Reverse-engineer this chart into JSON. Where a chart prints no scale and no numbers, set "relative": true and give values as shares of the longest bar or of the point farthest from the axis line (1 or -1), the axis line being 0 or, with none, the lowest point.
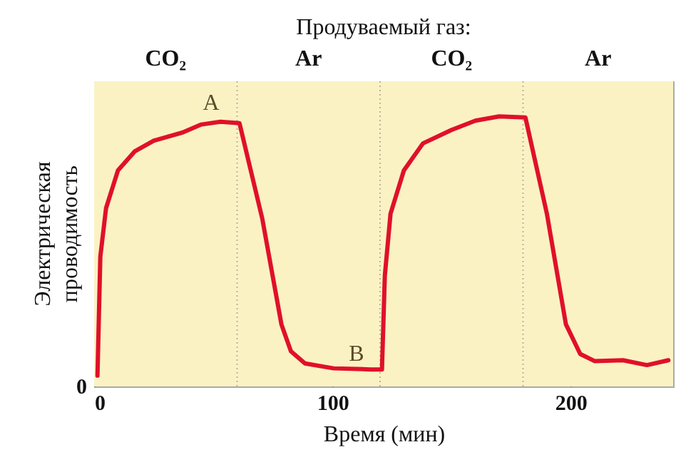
{
  "chart_data": {
    "type": "line",
    "title": "Продуваемый газ:",
    "xlabel": "Время (мин)",
    "ylabel": "Электрическая проводимость",
    "relative": true,
    "x": [
      1.4,
      2.6,
      5,
      10,
      17,
      25,
      37,
      45,
      53,
      61,
      70.6,
      78.6,
      82.6,
      88.5,
      100.5,
      116,
      120.8,
      122,
      124.4,
      130,
      138,
      150,
      160,
      170,
      181,
      190,
      198,
      204,
      210,
      222,
      232,
      241
    ],
    "series": [
      {
        "color": "#e0102a",
        "values": [
          0.04,
          0.48,
          0.66,
          0.8,
          0.87,
          0.91,
          0.94,
          0.97,
          0.98,
          0.975,
          0.62,
          0.23,
          0.13,
          0.085,
          0.067,
          0.063,
          0.063,
          0.41,
          0.64,
          0.8,
          0.9,
          0.95,
          0.984,
          1.0,
          0.996,
          0.64,
          0.23,
          0.12,
          0.094,
          0.097,
          0.079,
          0.097
        ]
      }
    ],
    "xlim": [
      0,
      243
    ],
    "xticks": [
      0,
      100,
      200
    ],
    "marker": "none",
    "line_style": "solid",
    "bands": [
      {
        "axis": "x",
        "from": 0,
        "to": 60,
        "label": "CO₂",
        "color": "#fbf2c4"
      },
      {
        "axis": "x",
        "from": 60,
        "to": 120,
        "label": "Ar",
        "color": "#fbf2c4"
      },
      {
        "axis": "x",
        "from": 120,
        "to": 180,
        "label": "CO₂",
        "color": "#fbf2c4"
      },
      {
        "axis": "x",
        "from": 180,
        "to": 243,
        "label": "Ar",
        "color": "#fbf2c4"
      }
    ],
    "annotations": [
      "A",
      "B",
      "0"
    ]
  }
}
